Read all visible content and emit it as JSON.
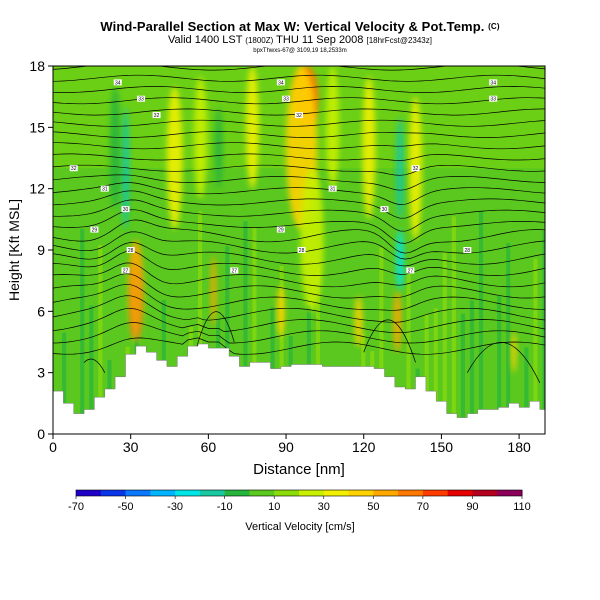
{
  "header": {
    "title": "Wind-Parallel Section at Max W: Vertical Velocity & Pot.Temp.",
    "copyright": "(C)",
    "valid_main": "Valid 1400 LST",
    "valid_paren": "(1800Z)",
    "valid_date": "THU 11 Sep 2008",
    "valid_bracket": "[18hrFcst@2343z]",
    "subtitle": "bpxThwxs-67@ 3109,19 18,2533m"
  },
  "colors": {
    "terrain": "#ffffff",
    "frame": "#000000",
    "contour": "#000000"
  },
  "chart_data": {
    "type": "heatmap",
    "title": "Wind-Parallel Section at Max W: Vertical Velocity & Pot.Temp.",
    "xlabel": "Distance [nm]",
    "ylabel": "Height [Kft MSL]",
    "xlim": [
      0,
      190
    ],
    "ylim": [
      0,
      18
    ],
    "xticks": [
      0,
      30,
      60,
      90,
      120,
      150,
      180
    ],
    "yticks": [
      0,
      3,
      6,
      9,
      12,
      15,
      18
    ],
    "colorbar": {
      "label": "Vertical Velocity [cm/s]",
      "levels": [
        -70,
        -60,
        -50,
        -40,
        -30,
        -20,
        -10,
        0,
        10,
        20,
        30,
        40,
        50,
        60,
        70,
        80,
        90,
        100,
        110
      ],
      "tick_labels": [
        "-70",
        "-50",
        "-30",
        "-10",
        "10",
        "30",
        "50",
        "70",
        "90",
        "110"
      ],
      "colors": [
        "#1f00c8",
        "#0a35e8",
        "#0a78ff",
        "#00b4ff",
        "#00e5e5",
        "#19c8a0",
        "#26b43c",
        "#5ac81e",
        "#8cdc0a",
        "#c8f000",
        "#f0f000",
        "#ffd200",
        "#ffa800",
        "#ff7800",
        "#ff3c00",
        "#e60000",
        "#b4001e",
        "#8c005a"
      ]
    },
    "terrain_kft": [
      [
        0,
        2.1
      ],
      [
        4,
        1.5
      ],
      [
        8,
        1.0
      ],
      [
        12,
        1.2
      ],
      [
        16,
        1.8
      ],
      [
        20,
        2.2
      ],
      [
        24,
        2.8
      ],
      [
        28,
        3.9
      ],
      [
        32,
        4.3
      ],
      [
        36,
        4.0
      ],
      [
        40,
        3.6
      ],
      [
        44,
        3.3
      ],
      [
        48,
        3.8
      ],
      [
        52,
        4.3
      ],
      [
        56,
        4.4
      ],
      [
        60,
        4.2
      ],
      [
        64,
        4.2
      ],
      [
        68,
        3.8
      ],
      [
        72,
        3.3
      ],
      [
        76,
        3.5
      ],
      [
        80,
        3.5
      ],
      [
        84,
        3.2
      ],
      [
        88,
        3.3
      ],
      [
        92,
        3.4
      ],
      [
        96,
        3.4
      ],
      [
        100,
        3.4
      ],
      [
        104,
        3.3
      ],
      [
        108,
        3.3
      ],
      [
        112,
        3.3
      ],
      [
        116,
        3.3
      ],
      [
        120,
        3.3
      ],
      [
        124,
        3.2
      ],
      [
        128,
        2.8
      ],
      [
        132,
        2.3
      ],
      [
        136,
        2.2
      ],
      [
        140,
        2.8
      ],
      [
        144,
        2.1
      ],
      [
        148,
        1.6
      ],
      [
        152,
        1.0
      ],
      [
        156,
        0.8
      ],
      [
        160,
        1.0
      ],
      [
        164,
        1.2
      ],
      [
        168,
        1.2
      ],
      [
        172,
        1.3
      ],
      [
        176,
        1.5
      ],
      [
        180,
        1.3
      ],
      [
        184,
        1.6
      ],
      [
        188,
        1.2
      ],
      [
        190,
        1.3
      ]
    ],
    "velocity_features": [
      {
        "x": 32,
        "y": 6.5,
        "w": 3,
        "h": 3.5,
        "value": 100
      },
      {
        "x": 32,
        "y": 7.0,
        "w": 6,
        "h": 5.0,
        "value": 55
      },
      {
        "x": 28,
        "y": 13.0,
        "w": 3,
        "h": 6.0,
        "value": -20
      },
      {
        "x": 24,
        "y": 14.0,
        "w": 4,
        "h": 6.0,
        "value": -10
      },
      {
        "x": 47,
        "y": 13.5,
        "w": 6,
        "h": 7.0,
        "value": 30
      },
      {
        "x": 57,
        "y": 14.5,
        "w": 5,
        "h": 6.0,
        "value": 25
      },
      {
        "x": 62,
        "y": 7.0,
        "w": 2,
        "h": 3.5,
        "value": 50
      },
      {
        "x": 64,
        "y": 14.0,
        "w": 3,
        "h": 4.0,
        "value": -10
      },
      {
        "x": 77,
        "y": 15.0,
        "w": 5,
        "h": 6.0,
        "value": 30
      },
      {
        "x": 88,
        "y": 6.0,
        "w": 3,
        "h": 2.5,
        "value": 45
      },
      {
        "x": 98,
        "y": 16.5,
        "w": 9,
        "h": 3.0,
        "value": 60
      },
      {
        "x": 96,
        "y": 14.0,
        "w": 12,
        "h": 8.0,
        "value": 40
      },
      {
        "x": 100,
        "y": 9.5,
        "w": 9,
        "h": 7.0,
        "value": 25
      },
      {
        "x": 108,
        "y": 15.0,
        "w": 5,
        "h": 6.0,
        "value": 25
      },
      {
        "x": 118,
        "y": 5.5,
        "w": 3,
        "h": 2.5,
        "value": 40
      },
      {
        "x": 122,
        "y": 14.0,
        "w": 5,
        "h": 7.0,
        "value": 30
      },
      {
        "x": 134,
        "y": 8.5,
        "w": 3,
        "h": 3.0,
        "value": -30
      },
      {
        "x": 134,
        "y": 13.0,
        "w": 3,
        "h": 5.0,
        "value": -15
      },
      {
        "x": 133,
        "y": 5.5,
        "w": 3,
        "h": 3.0,
        "value": 55
      },
      {
        "x": 140,
        "y": 13.0,
        "w": 5,
        "h": 7.0,
        "value": 30
      },
      {
        "x": 178,
        "y": 4.0,
        "w": 2,
        "h": 2.0,
        "value": 40
      }
    ],
    "theta_labels": [
      {
        "x": 25,
        "y": 17.2,
        "text": "34"
      },
      {
        "x": 88,
        "y": 17.2,
        "text": "34"
      },
      {
        "x": 170,
        "y": 17.2,
        "text": "34"
      },
      {
        "x": 34,
        "y": 16.4,
        "text": "33"
      },
      {
        "x": 90,
        "y": 16.4,
        "text": "33"
      },
      {
        "x": 170,
        "y": 16.4,
        "text": "33"
      },
      {
        "x": 40,
        "y": 15.6,
        "text": "32"
      },
      {
        "x": 95,
        "y": 15.6,
        "text": "32"
      },
      {
        "x": 8,
        "y": 13.0,
        "text": "32"
      },
      {
        "x": 140,
        "y": 13.0,
        "text": "32"
      },
      {
        "x": 20,
        "y": 12.0,
        "text": "31"
      },
      {
        "x": 108,
        "y": 12.0,
        "text": "31"
      },
      {
        "x": 28,
        "y": 11.0,
        "text": "30"
      },
      {
        "x": 128,
        "y": 11.0,
        "text": "30"
      },
      {
        "x": 16,
        "y": 10.0,
        "text": "29"
      },
      {
        "x": 88,
        "y": 10.0,
        "text": "29"
      },
      {
        "x": 30,
        "y": 9.0,
        "text": "28"
      },
      {
        "x": 96,
        "y": 9.0,
        "text": "28"
      },
      {
        "x": 160,
        "y": 9.0,
        "text": "28"
      },
      {
        "x": 28,
        "y": 8.0,
        "text": "27"
      },
      {
        "x": 70,
        "y": 8.0,
        "text": "27"
      },
      {
        "x": 138,
        "y": 8.0,
        "text": "27"
      }
    ]
  }
}
